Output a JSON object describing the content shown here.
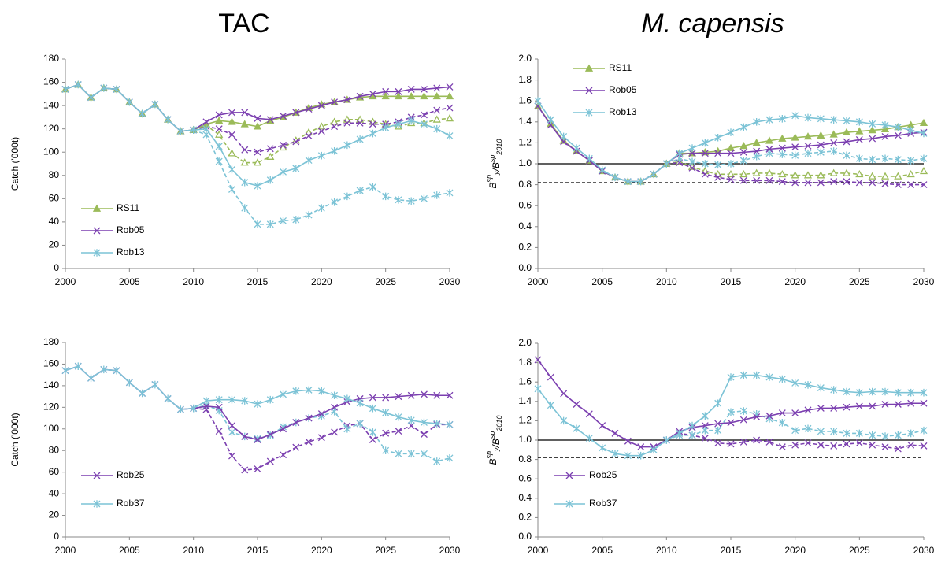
{
  "chart_data": [
    {
      "type": "line",
      "title": "TAC",
      "ylabel": "Catch ('000t)",
      "legend": "lower left",
      "x": [
        2000,
        2001,
        2002,
        2003,
        2004,
        2005,
        2006,
        2007,
        2008,
        2009,
        2010,
        2011,
        2012,
        2013,
        2014,
        2015,
        2016,
        2017,
        2018,
        2019,
        2020,
        2021,
        2022,
        2023,
        2024,
        2025,
        2026,
        2027,
        2028,
        2029,
        2030
      ],
      "xlim": [
        2000,
        2030
      ],
      "xticks": [
        2000,
        2005,
        2010,
        2015,
        2020,
        2025,
        2030
      ],
      "ylim": [
        0,
        180
      ],
      "yticks": [
        0,
        20,
        40,
        60,
        80,
        100,
        120,
        140,
        160,
        180
      ],
      "series": [
        {
          "name": "RS11",
          "color": "#9bbb59",
          "marker": "triangle",
          "values": [
            154,
            158,
            147,
            155,
            154,
            143,
            133,
            141,
            128,
            118,
            119,
            124,
            127,
            126,
            124,
            122,
            127,
            130,
            134,
            138,
            141,
            143,
            145,
            147,
            148,
            148,
            148,
            148,
            148,
            148,
            148
          ],
          "dashed_values": [
            null,
            null,
            null,
            null,
            null,
            null,
            null,
            null,
            null,
            null,
            119,
            123,
            115,
            99,
            91,
            91,
            96,
            104,
            110,
            117,
            122,
            126,
            128,
            128,
            126,
            124,
            122,
            125,
            125,
            128,
            129
          ]
        },
        {
          "name": "Rob05",
          "color": "#7b3fb0",
          "marker": "x",
          "values": [
            154,
            158,
            147,
            155,
            154,
            143,
            133,
            141,
            128,
            118,
            119,
            126,
            132,
            134,
            134,
            129,
            128,
            131,
            134,
            137,
            140,
            143,
            145,
            148,
            150,
            152,
            152,
            154,
            154,
            155,
            156
          ],
          "dashed_values": [
            null,
            null,
            null,
            null,
            null,
            null,
            null,
            null,
            null,
            null,
            119,
            122,
            120,
            115,
            102,
            100,
            103,
            106,
            109,
            114,
            118,
            122,
            125,
            125,
            124,
            124,
            126,
            130,
            132,
            136,
            138
          ]
        },
        {
          "name": "Rob13",
          "color": "#7cc3d6",
          "marker": "asterisk",
          "values": [
            154,
            158,
            147,
            155,
            154,
            143,
            133,
            141,
            128,
            118,
            119,
            120,
            105,
            85,
            74,
            71,
            76,
            83,
            86,
            93,
            97,
            101,
            106,
            111,
            116,
            121,
            124,
            127,
            124,
            120,
            114
          ],
          "dashed_values": [
            null,
            null,
            null,
            null,
            null,
            null,
            null,
            null,
            null,
            null,
            119,
            115,
            92,
            68,
            52,
            38,
            38,
            41,
            42,
            46,
            52,
            57,
            62,
            67,
            70,
            62,
            59,
            58,
            60,
            63,
            65
          ]
        }
      ]
    },
    {
      "type": "line",
      "title": "M. capensis",
      "ylabel": [
        [
          "B",
          "sp",
          "y"
        ],
        [
          "/B",
          "sp",
          "2010"
        ]
      ],
      "legend": "upper left",
      "x": [
        2000,
        2001,
        2002,
        2003,
        2004,
        2005,
        2006,
        2007,
        2008,
        2009,
        2010,
        2011,
        2012,
        2013,
        2014,
        2015,
        2016,
        2017,
        2018,
        2019,
        2020,
        2021,
        2022,
        2023,
        2024,
        2025,
        2026,
        2027,
        2028,
        2029,
        2030
      ],
      "xlim": [
        2000,
        2030
      ],
      "xticks": [
        2000,
        2005,
        2010,
        2015,
        2020,
        2025,
        2030
      ],
      "ylim": [
        0,
        2
      ],
      "yticks": [
        {
          "value": 0,
          "label": "0.0"
        },
        {
          "value": 0.2,
          "label": "0.2"
        },
        {
          "value": 0.4,
          "label": "0.4"
        },
        {
          "value": 0.6,
          "label": "0.6"
        },
        {
          "value": 0.8,
          "label": "0.8"
        },
        {
          "value": 1,
          "label": "1.0"
        },
        {
          "value": 1.2,
          "label": "1.2"
        },
        {
          "value": 1.4,
          "label": "1.4"
        },
        {
          "value": 1.6,
          "label": "1.6"
        },
        {
          "value": 1.8,
          "label": "1.8"
        },
        {
          "value": 2,
          "label": "2.0"
        }
      ],
      "hlines": [
        {
          "value": 1,
          "style": "solid"
        },
        {
          "value": 0.82,
          "style": "dashed"
        }
      ],
      "series": [
        {
          "name": "RS11",
          "color": "#9bbb59",
          "marker": "triangle",
          "values": [
            1.55,
            1.38,
            1.22,
            1.12,
            1.03,
            0.93,
            0.87,
            0.83,
            0.83,
            0.9,
            1,
            1.1,
            1.1,
            1.11,
            1.12,
            1.15,
            1.17,
            1.2,
            1.22,
            1.24,
            1.25,
            1.26,
            1.27,
            1.28,
            1.3,
            1.31,
            1.32,
            1.33,
            1.35,
            1.37,
            1.39
          ],
          "dashed_values": [
            null,
            null,
            null,
            null,
            null,
            null,
            null,
            null,
            null,
            null,
            1,
            1.02,
            0.97,
            0.93,
            0.9,
            0.9,
            0.9,
            0.91,
            0.91,
            0.9,
            0.89,
            0.89,
            0.89,
            0.91,
            0.91,
            0.9,
            0.88,
            0.88,
            0.88,
            0.9,
            0.93
          ]
        },
        {
          "name": "Rob05",
          "color": "#7b3fb0",
          "marker": "x",
          "values": [
            1.55,
            1.37,
            1.21,
            1.12,
            1.03,
            0.93,
            0.87,
            0.83,
            0.83,
            0.9,
            1,
            1.09,
            1.1,
            1.1,
            1.1,
            1.1,
            1.11,
            1.12,
            1.14,
            1.15,
            1.16,
            1.17,
            1.18,
            1.2,
            1.21,
            1.23,
            1.24,
            1.26,
            1.27,
            1.29,
            1.3
          ],
          "dashed_values": [
            null,
            null,
            null,
            null,
            null,
            null,
            null,
            null,
            null,
            null,
            1,
            1.01,
            0.96,
            0.9,
            0.87,
            0.85,
            0.84,
            0.84,
            0.84,
            0.83,
            0.82,
            0.82,
            0.82,
            0.83,
            0.83,
            0.82,
            0.82,
            0.81,
            0.8,
            0.8,
            0.8
          ]
        },
        {
          "name": "Rob13",
          "color": "#7cc3d6",
          "marker": "asterisk",
          "values": [
            1.6,
            1.42,
            1.26,
            1.15,
            1.05,
            0.94,
            0.87,
            0.83,
            0.83,
            0.9,
            1,
            1.1,
            1.15,
            1.2,
            1.25,
            1.3,
            1.35,
            1.4,
            1.42,
            1.43,
            1.46,
            1.44,
            1.43,
            1.42,
            1.41,
            1.4,
            1.38,
            1.37,
            1.35,
            1.32,
            1.29
          ],
          "dashed_values": [
            null,
            null,
            null,
            null,
            null,
            null,
            null,
            null,
            null,
            null,
            1,
            1.05,
            1.02,
            1,
            0.99,
            1,
            1.03,
            1.07,
            1.1,
            1.09,
            1.08,
            1.1,
            1.11,
            1.12,
            1.08,
            1.05,
            1.04,
            1.05,
            1.04,
            1.03,
            1.05
          ]
        }
      ]
    },
    {
      "type": "line",
      "ylabel": "Catch ('000t)",
      "legend": "lower left",
      "x": [
        2000,
        2001,
        2002,
        2003,
        2004,
        2005,
        2006,
        2007,
        2008,
        2009,
        2010,
        2011,
        2012,
        2013,
        2014,
        2015,
        2016,
        2017,
        2018,
        2019,
        2020,
        2021,
        2022,
        2023,
        2024,
        2025,
        2026,
        2027,
        2028,
        2029,
        2030
      ],
      "xlim": [
        2000,
        2030
      ],
      "xticks": [
        2000,
        2005,
        2010,
        2015,
        2020,
        2025,
        2030
      ],
      "ylim": [
        0,
        180
      ],
      "yticks": [
        0,
        20,
        40,
        60,
        80,
        100,
        120,
        140,
        160,
        180
      ],
      "series": [
        {
          "name": "Rob25",
          "color": "#7b3fb0",
          "marker": "x",
          "values": [
            154,
            158,
            147,
            155,
            154,
            143,
            133,
            141,
            128,
            118,
            119,
            121,
            120,
            103,
            93,
            90,
            95,
            100,
            106,
            110,
            114,
            120,
            125,
            128,
            129,
            129,
            130,
            131,
            132,
            131,
            131
          ],
          "dashed_values": [
            null,
            null,
            null,
            null,
            null,
            null,
            null,
            null,
            null,
            null,
            119,
            118,
            98,
            75,
            62,
            63,
            70,
            76,
            83,
            88,
            92,
            97,
            103,
            105,
            90,
            96,
            98,
            103,
            95,
            104,
            104
          ]
        },
        {
          "name": "Rob37",
          "color": "#7cc3d6",
          "marker": "asterisk",
          "values": [
            154,
            158,
            147,
            155,
            154,
            143,
            133,
            141,
            128,
            118,
            119,
            126,
            127,
            127,
            126,
            123,
            127,
            132,
            135,
            136,
            135,
            131,
            128,
            124,
            119,
            115,
            111,
            108,
            106,
            105,
            104
          ],
          "dashed_values": [
            null,
            null,
            null,
            null,
            null,
            null,
            null,
            null,
            null,
            null,
            119,
            122,
            117,
            97,
            93,
            91,
            94,
            102,
            106,
            110,
            112,
            116,
            100,
            105,
            97,
            80,
            77,
            77,
            77,
            70,
            73
          ]
        }
      ]
    },
    {
      "type": "line",
      "ylabel": [
        [
          "B",
          "sp",
          "y"
        ],
        [
          "/B",
          "sp",
          "2010"
        ]
      ],
      "legend": "lower left",
      "x": [
        2000,
        2001,
        2002,
        2003,
        2004,
        2005,
        2006,
        2007,
        2008,
        2009,
        2010,
        2011,
        2012,
        2013,
        2014,
        2015,
        2016,
        2017,
        2018,
        2019,
        2020,
        2021,
        2022,
        2023,
        2024,
        2025,
        2026,
        2027,
        2028,
        2029,
        2030
      ],
      "xlim": [
        2000,
        2030
      ],
      "xticks": [
        2000,
        2005,
        2010,
        2015,
        2020,
        2025,
        2030
      ],
      "ylim": [
        0,
        2
      ],
      "yticks": [
        {
          "value": 0,
          "label": "0.0"
        },
        {
          "value": 0.2,
          "label": "0.2"
        },
        {
          "value": 0.4,
          "label": "0.4"
        },
        {
          "value": 0.6,
          "label": "0.6"
        },
        {
          "value": 0.8,
          "label": "0.8"
        },
        {
          "value": 1,
          "label": "1.0"
        },
        {
          "value": 1.2,
          "label": "1.2"
        },
        {
          "value": 1.4,
          "label": "1.4"
        },
        {
          "value": 1.6,
          "label": "1.6"
        },
        {
          "value": 1.8,
          "label": "1.8"
        },
        {
          "value": 2,
          "label": "2.0"
        }
      ],
      "hlines": [
        {
          "value": 1,
          "style": "solid"
        },
        {
          "value": 0.82,
          "style": "dashed"
        }
      ],
      "series": [
        {
          "name": "Rob25",
          "color": "#7b3fb0",
          "marker": "x",
          "values": [
            1.83,
            1.65,
            1.48,
            1.37,
            1.27,
            1.15,
            1.07,
            0.99,
            0.93,
            0.93,
            1,
            1.09,
            1.13,
            1.15,
            1.17,
            1.18,
            1.21,
            1.24,
            1.25,
            1.28,
            1.28,
            1.31,
            1.33,
            1.33,
            1.34,
            1.35,
            1.35,
            1.37,
            1.37,
            1.38,
            1.38
          ],
          "dashed_values": [
            null,
            null,
            null,
            null,
            null,
            null,
            null,
            null,
            null,
            null,
            1,
            1.07,
            1.05,
            1.02,
            0.97,
            0.96,
            0.98,
            1,
            0.98,
            0.93,
            0.95,
            0.97,
            0.95,
            0.94,
            0.96,
            0.97,
            0.95,
            0.93,
            0.91,
            0.95,
            0.94
          ]
        },
        {
          "name": "Rob37",
          "color": "#7cc3d6",
          "marker": "asterisk",
          "values": [
            1.53,
            1.36,
            1.2,
            1.12,
            1.02,
            0.92,
            0.86,
            0.84,
            0.84,
            0.9,
            1,
            1.07,
            1.15,
            1.25,
            1.38,
            1.65,
            1.67,
            1.67,
            1.65,
            1.63,
            1.59,
            1.57,
            1.54,
            1.52,
            1.5,
            1.49,
            1.5,
            1.5,
            1.49,
            1.49,
            1.49
          ],
          "dashed_values": [
            null,
            null,
            null,
            null,
            null,
            null,
            null,
            null,
            null,
            null,
            1,
            1.05,
            1.05,
            1.1,
            1.1,
            1.29,
            1.3,
            1.27,
            1.22,
            1.18,
            1.1,
            1.12,
            1.09,
            1.09,
            1.07,
            1.07,
            1.05,
            1.04,
            1.05,
            1.07,
            1.1
          ]
        }
      ]
    }
  ]
}
